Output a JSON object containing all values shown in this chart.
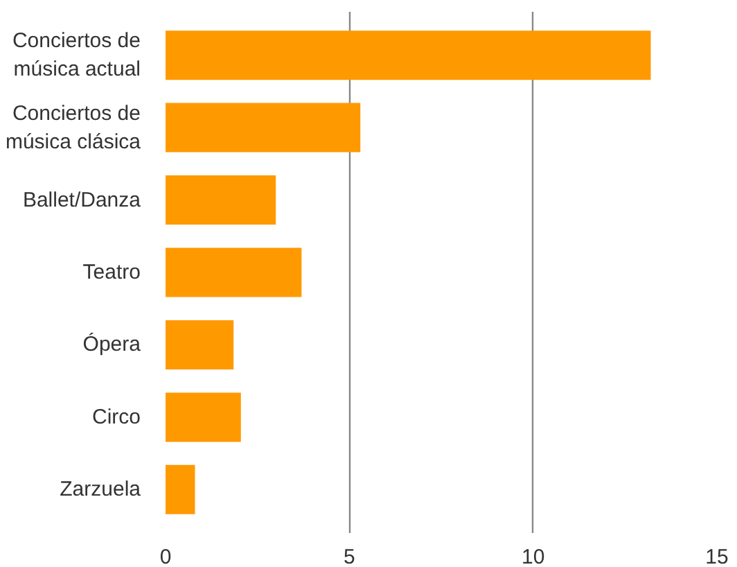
{
  "chart_data": {
    "type": "bar",
    "orientation": "horizontal",
    "categories": [
      "Conciertos de\nmúsica actual",
      "Conciertos de\nmúsica clásica",
      "Ballet/Danza",
      "Teatro",
      "Ópera",
      "Circo",
      "Zarzuela"
    ],
    "values": [
      13.2,
      5.3,
      3.0,
      3.7,
      1.85,
      2.05,
      0.8
    ],
    "color": "#ff9900",
    "xlim": [
      0,
      15
    ],
    "xticks": [
      0,
      5,
      10,
      15
    ],
    "grid": "x"
  }
}
